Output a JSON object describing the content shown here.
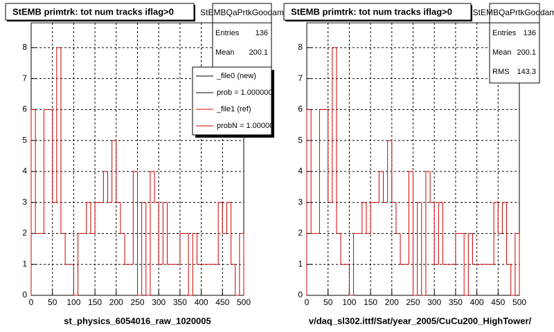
{
  "chart_data": [
    {
      "type": "histogram",
      "title": "StEMB primtrk: tot num tracks iflag>0",
      "x_label": "st_physics_6054016_raw_1020005",
      "bins": [
        0,
        10,
        20,
        30,
        40,
        50,
        60,
        70,
        80,
        90,
        100,
        110,
        120,
        130,
        140,
        150,
        160,
        170,
        180,
        190,
        200,
        210,
        220,
        230,
        240,
        250,
        260,
        270,
        280,
        290,
        300,
        310,
        320,
        330,
        340,
        350,
        360,
        370,
        380,
        390,
        400,
        410,
        420,
        430,
        440,
        450,
        460,
        470,
        480,
        490,
        500
      ],
      "values": [
        6,
        2,
        2,
        6,
        6,
        3,
        8,
        2,
        1,
        1,
        0,
        2,
        2,
        3,
        2,
        3,
        3,
        4,
        3,
        5,
        3,
        2,
        1,
        1,
        4,
        0,
        3,
        0,
        4,
        3,
        1,
        3,
        1,
        1,
        1,
        2,
        2,
        0,
        2,
        1,
        1,
        1,
        1,
        1,
        3,
        2,
        3,
        1,
        0,
        2
      ],
      "color": "#cc0000",
      "xlim": [
        0,
        500
      ],
      "ylim": [
        0,
        8.8
      ],
      "xticks": [
        0,
        50,
        100,
        150,
        200,
        250,
        300,
        350,
        400,
        450,
        500
      ],
      "yticks": [
        0,
        1,
        2,
        3,
        4,
        5,
        6,
        7,
        8
      ],
      "grid": true,
      "stats": {
        "title": "StEMBQaPrtkGoodam",
        "labels": [
          "Entries",
          "Mean"
        ],
        "values": [
          "136",
          "200.1"
        ]
      },
      "legend": [
        {
          "name": "_file0 (new)",
          "color": "#000000"
        },
        {
          "name": "prob = 1.000000",
          "color": "#000000"
        },
        {
          "name": "_file1 (ref)",
          "color": "#cc0000"
        },
        {
          "name": "probN = 1.000000",
          "color": "#cc0000"
        }
      ]
    },
    {
      "type": "histogram",
      "title": "StEMB primtrk: tot num tracks iflag>0",
      "x_label": "v/daq_sl302.ittf/Sat/year_2005/CuCu200_HighTower/",
      "bins": [
        0,
        10,
        20,
        30,
        40,
        50,
        60,
        70,
        80,
        90,
        100,
        110,
        120,
        130,
        140,
        150,
        160,
        170,
        180,
        190,
        200,
        210,
        220,
        230,
        240,
        250,
        260,
        270,
        280,
        290,
        300,
        310,
        320,
        330,
        340,
        350,
        360,
        370,
        380,
        390,
        400,
        410,
        420,
        430,
        440,
        450,
        460,
        470,
        480,
        490,
        500
      ],
      "values": [
        6,
        2,
        2,
        6,
        6,
        3,
        8,
        2,
        1,
        1,
        0,
        2,
        2,
        3,
        2,
        3,
        3,
        4,
        3,
        5,
        3,
        2,
        1,
        1,
        4,
        0,
        3,
        0,
        4,
        3,
        1,
        3,
        1,
        1,
        1,
        2,
        2,
        0,
        2,
        1,
        1,
        1,
        1,
        1,
        3,
        2,
        3,
        1,
        0,
        2
      ],
      "color": "#cc0000",
      "xlim": [
        0,
        500
      ],
      "ylim": [
        0,
        8.8
      ],
      "xticks": [
        0,
        50,
        100,
        150,
        200,
        250,
        300,
        350,
        400,
        450,
        500
      ],
      "yticks": [
        0,
        1,
        2,
        3,
        4,
        5,
        6,
        7,
        8
      ],
      "grid": true,
      "stats": {
        "title": "StEMBQaPrtkGoodam",
        "labels": [
          "Entries",
          "Mean",
          "RMS"
        ],
        "values": [
          "136",
          "200.1",
          "143.3"
        ]
      }
    }
  ]
}
